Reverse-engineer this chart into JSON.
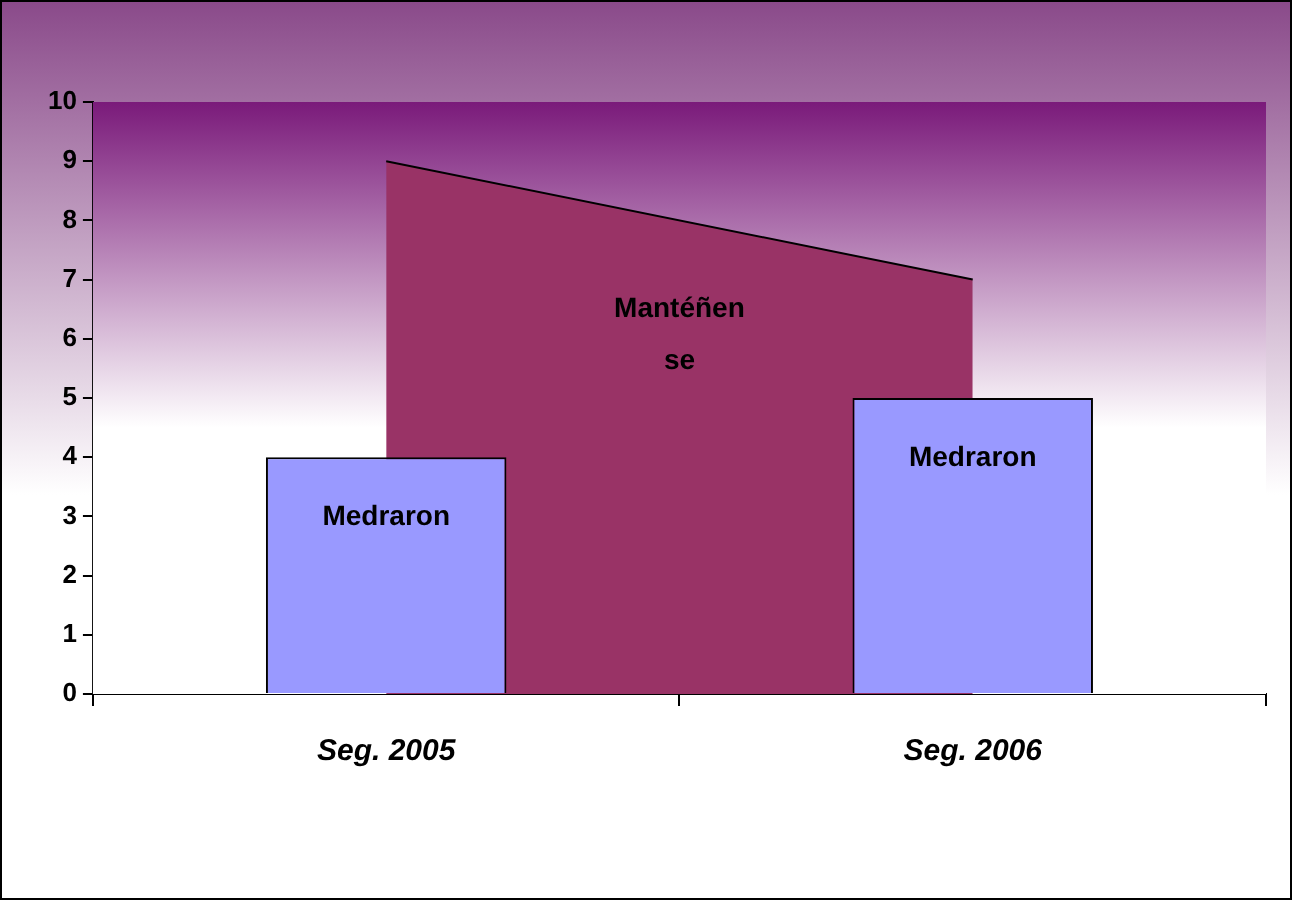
{
  "chart_data": {
    "type": "bar",
    "categories": [
      "Seg. 2005",
      "Seg. 2006"
    ],
    "series": [
      {
        "name": "Mantéñen se",
        "type": "area",
        "color": "#993366",
        "values": [
          9,
          7
        ]
      },
      {
        "name": "Medraron",
        "color": "#9999ff",
        "values": [
          4,
          5
        ]
      }
    ],
    "ylim": [
      0,
      10
    ],
    "yticks": [
      0,
      1,
      2,
      3,
      4,
      5,
      6,
      7,
      8,
      9,
      10
    ],
    "grid": false,
    "legend": false
  }
}
